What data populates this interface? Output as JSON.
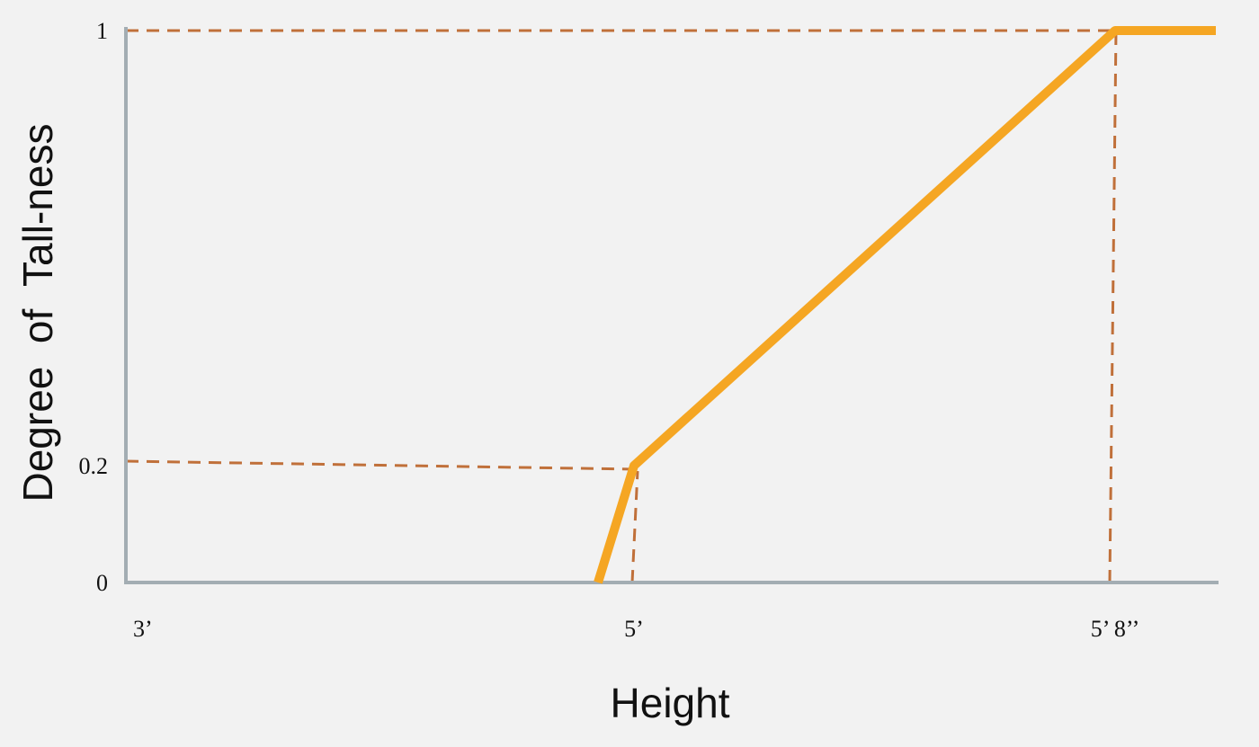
{
  "chart_data": {
    "type": "line",
    "title": "",
    "xlabel": "Height",
    "ylabel": "Degree  of  Tall-ness",
    "x_ticks": [
      {
        "value": 36,
        "label": "3’"
      },
      {
        "value": 60,
        "label": "5’"
      },
      {
        "value": 68,
        "label": "5’ 8’’"
      }
    ],
    "y_ticks": [
      {
        "value": 0,
        "label": "0"
      },
      {
        "value": 0.2,
        "label": "0.2"
      },
      {
        "value": 1,
        "label": "1"
      }
    ],
    "series": [
      {
        "points": [
          {
            "x": 58.3,
            "y": 0
          },
          {
            "x": 60,
            "y": 0.2
          },
          {
            "x": 68,
            "y": 1
          },
          {
            "x": 69.3,
            "y": 1
          }
        ]
      }
    ],
    "reference_lines": [
      {
        "from": {
          "x": 36,
          "y": 0.2
        },
        "to": {
          "x": 60,
          "y": 0.2
        }
      },
      {
        "from": {
          "x": 60,
          "y": 0
        },
        "to": {
          "x": 60,
          "y": 0.2
        }
      },
      {
        "from": {
          "x": 36,
          "y": 1
        },
        "to": {
          "x": 68,
          "y": 1
        }
      },
      {
        "from": {
          "x": 68,
          "y": 0
        },
        "to": {
          "x": 68,
          "y": 1
        }
      }
    ],
    "grid": false,
    "colors": {
      "line": "#f5a623",
      "reference": "#c0703a",
      "axis": "#a3adb3"
    }
  }
}
